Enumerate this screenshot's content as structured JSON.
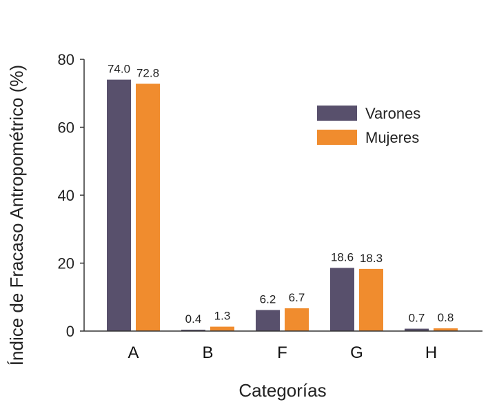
{
  "chart_data": {
    "type": "bar",
    "categories": [
      "A",
      "B",
      "F",
      "G",
      "H"
    ],
    "series": [
      {
        "name": "Varones",
        "values": [
          74.0,
          0.4,
          6.2,
          18.6,
          0.7
        ],
        "labels": [
          "74.0",
          "0.4",
          "6.2",
          "18.6",
          "0.7"
        ],
        "color": "#58506c"
      },
      {
        "name": "Mujeres",
        "values": [
          72.8,
          1.3,
          6.7,
          18.3,
          0.8
        ],
        "labels": [
          "72.8",
          "1.3",
          "6.7",
          "18.3",
          "0.8"
        ],
        "color": "#f08c2e"
      }
    ],
    "xlabel": "Categorías",
    "ylabel": "Índice de Fracaso Antropométrico (%)",
    "ylim": [
      0,
      80
    ],
    "yticks": [
      0,
      20,
      40,
      60,
      80
    ],
    "grid": false,
    "legend": "top-right"
  }
}
